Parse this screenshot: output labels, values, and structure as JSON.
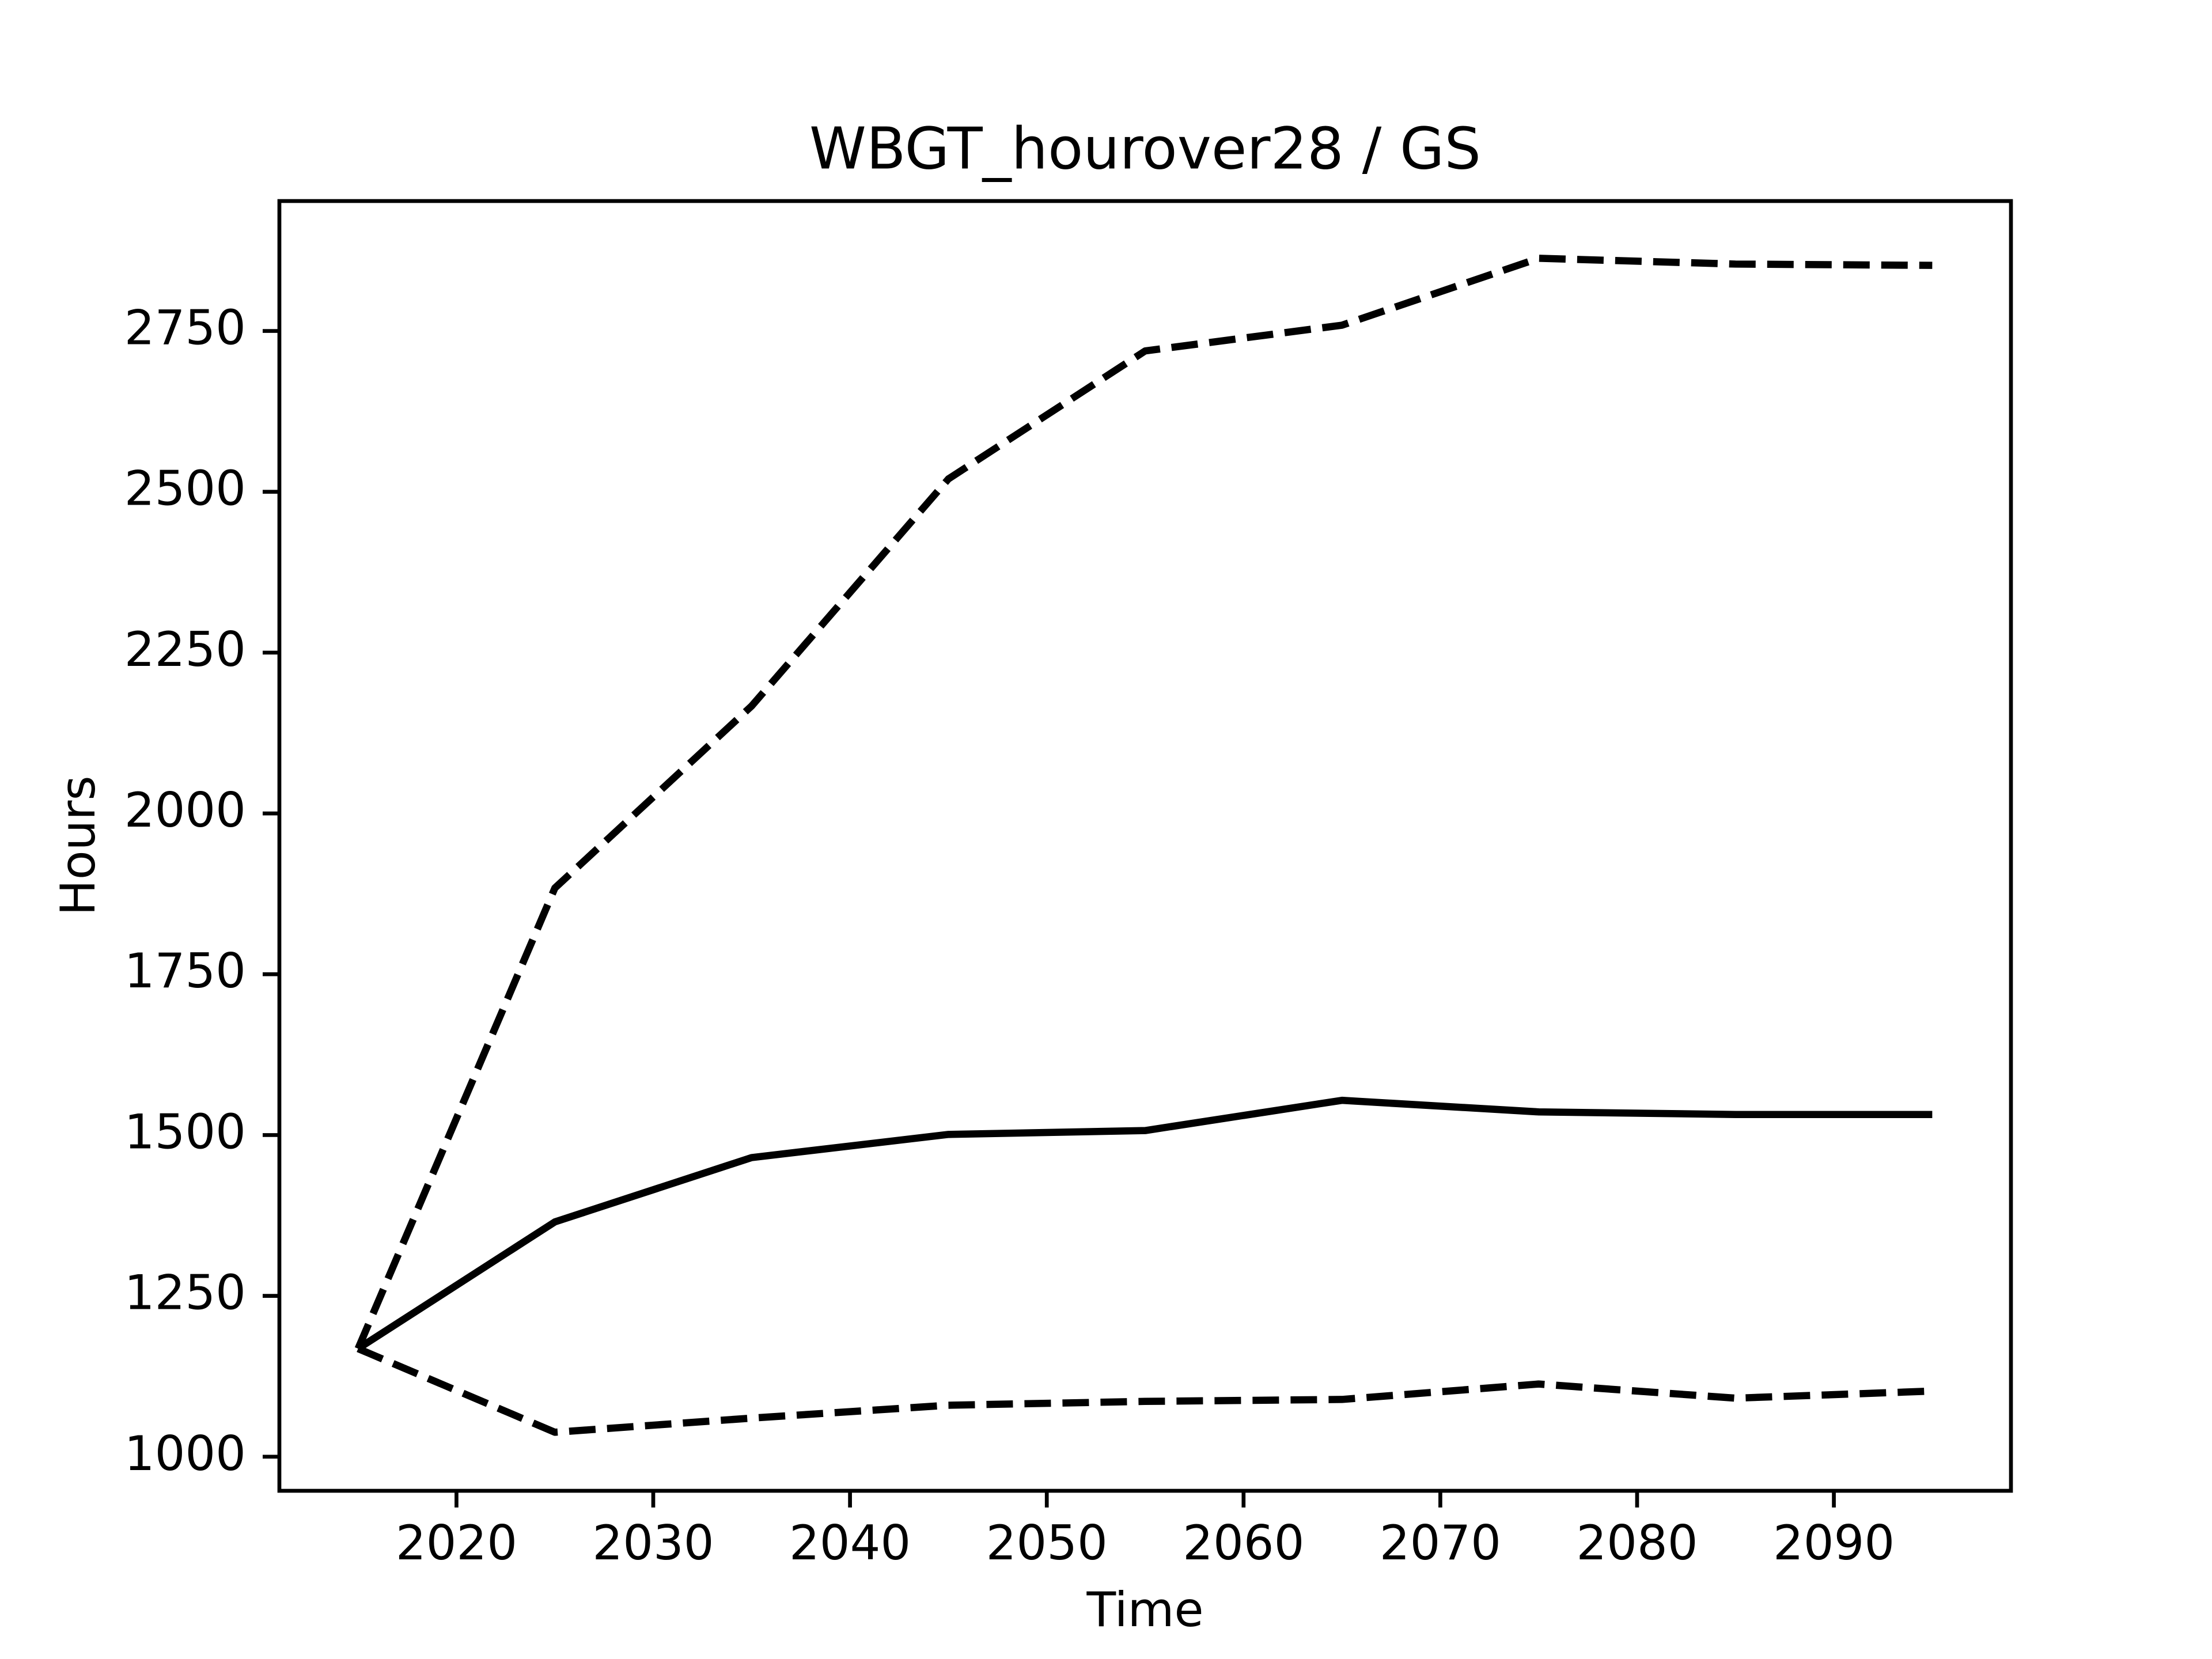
{
  "chart_data": {
    "type": "line",
    "title": "WBGT_hourover28 / GS",
    "xlabel": "Time",
    "ylabel": "Hours",
    "x": [
      2015,
      2025,
      2035,
      2045,
      2055,
      2065,
      2075,
      2085,
      2095
    ],
    "series": [
      {
        "color": "#000000",
        "dashed": false,
        "values": [
          1168,
          1365,
          1465,
          1501,
          1507,
          1554,
          1536,
          1532,
          1532
        ]
      },
      {
        "color": "#000000",
        "dashed": true,
        "values": [
          1168,
          1884,
          2167,
          2520,
          2719,
          2759,
          2863,
          2854,
          2852
        ]
      },
      {
        "color": "#000000",
        "dashed": true,
        "values": [
          1168,
          1038,
          1060,
          1080,
          1086,
          1089,
          1113,
          1091,
          1102
        ]
      }
    ],
    "xlim": [
      2011,
      2099
    ],
    "xticks": [
      2020,
      2030,
      2040,
      2050,
      2060,
      2070,
      2080,
      2090
    ],
    "ylim": [
      947,
      2952
    ],
    "yticks": [
      1000,
      1250,
      1500,
      1750,
      2000,
      2250,
      2500,
      2750
    ],
    "grid": false
  }
}
